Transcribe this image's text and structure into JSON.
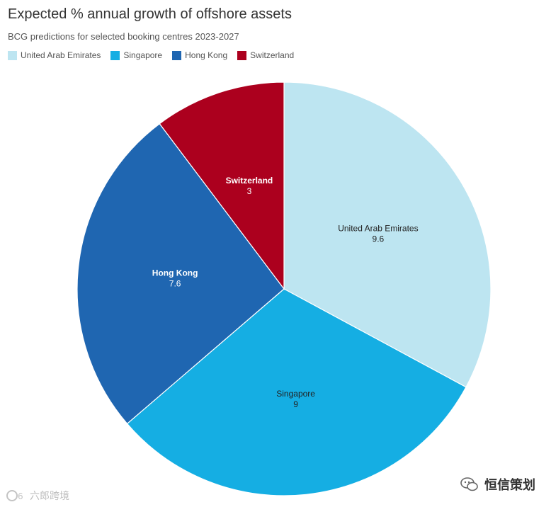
{
  "chart_data": {
    "type": "pie",
    "title": "Expected % annual growth of offshore assets",
    "subtitle": "BCG predictions for selected booking centres 2023-2027",
    "legend_placement": "top-left",
    "categories": [
      "United Arab Emirates",
      "Singapore",
      "Hong Kong",
      "Switzerland"
    ],
    "values": [
      9.6,
      9,
      7.6,
      3
    ],
    "value_labels": [
      "9.6",
      "9",
      "7.6",
      "3"
    ],
    "colors": [
      "#bde5f1",
      "#15aee3",
      "#1f66b1",
      "#ac001e"
    ],
    "label_colors": [
      "#222222",
      "#222222",
      "#ffffff",
      "#ffffff"
    ]
  },
  "watermarks": {
    "left_text": "六郎跨境",
    "right_text": "恒信策划",
    "left_icon": "logo-icon",
    "right_icon": "wechat-icon"
  }
}
